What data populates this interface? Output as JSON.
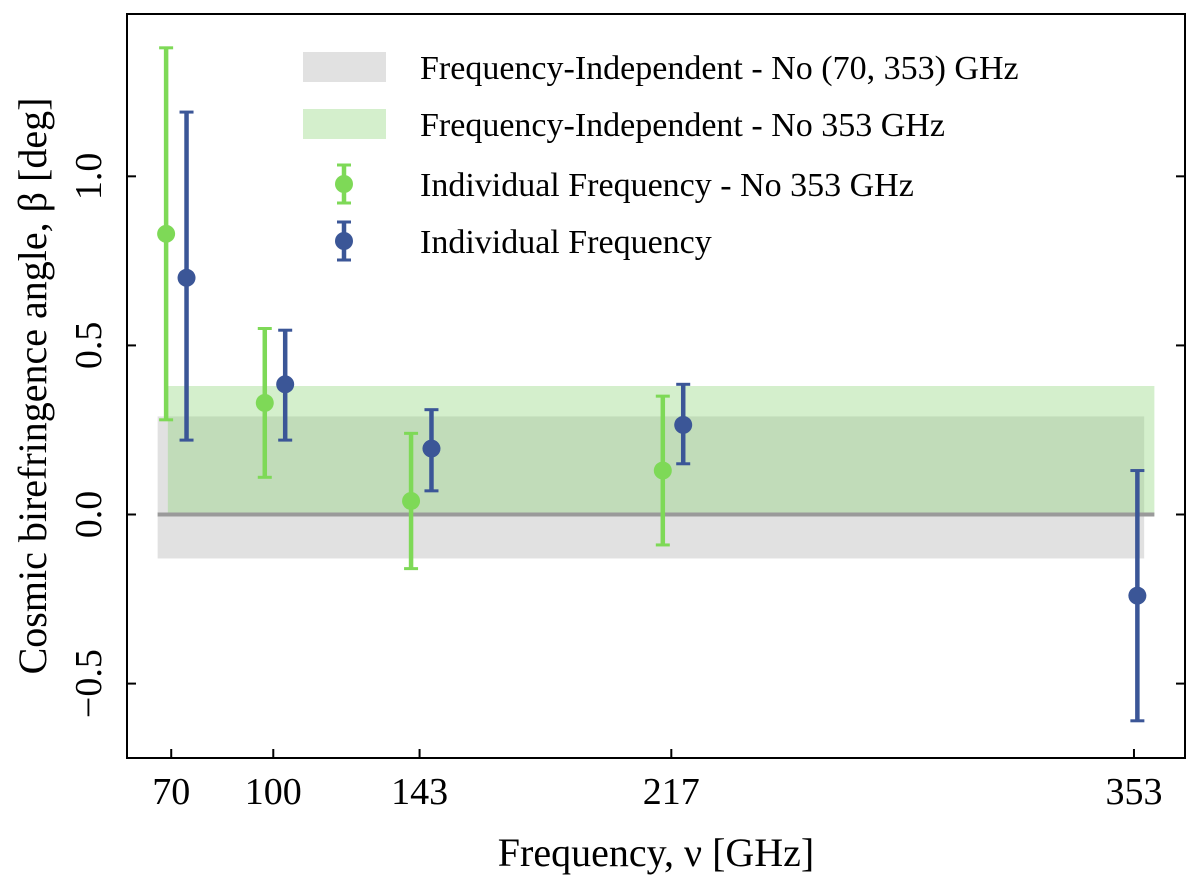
{
  "chart_data": {
    "type": "errorbar",
    "title": "",
    "xlabel": "Frequency, ν [GHz]",
    "ylabel": "Cosmic birefringence angle, β [deg]",
    "xlim": [
      57.0,
      368.0
    ],
    "ylim": [
      -0.72,
      1.48
    ],
    "x_ticks": [
      70,
      100,
      143,
      217,
      353
    ],
    "x_tick_labels": [
      "70",
      "100",
      "143",
      "217",
      "353"
    ],
    "y_ticks": [
      -0.5,
      0.0,
      0.5,
      1.0
    ],
    "y_tick_labels": [
      "−0.5",
      "0.0",
      "0.5",
      "1.0"
    ],
    "zero_line": 0.0,
    "bands": [
      {
        "name": "Frequency-Independent - No (70, 353) GHz",
        "color": "#c8c8c8",
        "opacity": 0.55,
        "x_range": [
          66.0,
          356.0
        ],
        "y_low": -0.13,
        "y_high": 0.29
      },
      {
        "name": "Frequency-Independent - No 353 GHz",
        "color": "#8fd67a",
        "opacity": 0.38,
        "x_range": [
          69.0,
          359.0
        ],
        "y_low": 0.0,
        "y_high": 0.38
      }
    ],
    "series": [
      {
        "name": "Individual Frequency - No 353 GHz",
        "color": "#7ed957",
        "points": [
          {
            "freq": 70,
            "x": 68.5,
            "y": 0.83,
            "y_low": 0.28,
            "y_high": 1.38
          },
          {
            "freq": 100,
            "x": 97.5,
            "y": 0.33,
            "y_low": 0.11,
            "y_high": 0.55
          },
          {
            "freq": 143,
            "x": 140.5,
            "y": 0.04,
            "y_low": -0.16,
            "y_high": 0.24
          },
          {
            "freq": 217,
            "x": 214.5,
            "y": 0.13,
            "y_low": -0.09,
            "y_high": 0.35
          }
        ]
      },
      {
        "name": "Individual Frequency",
        "color": "#3b5697",
        "points": [
          {
            "freq": 70,
            "x": 74.5,
            "y": 0.7,
            "y_low": 0.22,
            "y_high": 1.19
          },
          {
            "freq": 100,
            "x": 103.5,
            "y": 0.385,
            "y_low": 0.22,
            "y_high": 0.545
          },
          {
            "freq": 143,
            "x": 146.5,
            "y": 0.195,
            "y_low": 0.07,
            "y_high": 0.31
          },
          {
            "freq": 217,
            "x": 220.5,
            "y": 0.265,
            "y_low": 0.15,
            "y_high": 0.385
          },
          {
            "freq": 353,
            "x": 354.0,
            "y": -0.24,
            "y_low": -0.61,
            "y_high": 0.13
          }
        ]
      }
    ],
    "legend": {
      "placement": "top-right",
      "entries": [
        {
          "label": "Frequency-Independent - No (70, 353) GHz",
          "kind": "band",
          "color": "#c8c8c8",
          "opacity": 0.55
        },
        {
          "label": "Frequency-Independent - No 353 GHz",
          "kind": "band",
          "color": "#8fd67a",
          "opacity": 0.38
        },
        {
          "label": "Individual Frequency - No 353 GHz",
          "kind": "errorbar",
          "color": "#7ed957"
        },
        {
          "label": "Individual Frequency",
          "kind": "errorbar",
          "color": "#3b5697"
        }
      ]
    }
  }
}
